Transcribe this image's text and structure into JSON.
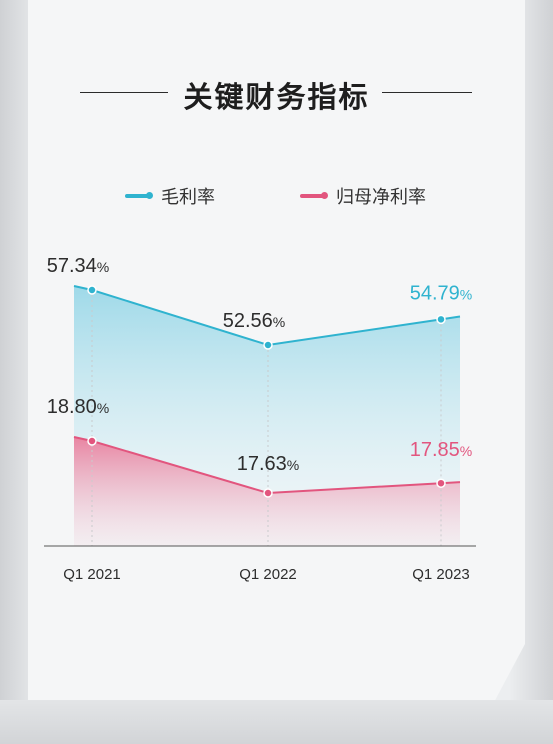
{
  "title": "关键财务指标",
  "legend": {
    "series1": "毛利率",
    "series2": "归母净利率"
  },
  "colors": {
    "series1": "#2fb3cf",
    "series2": "#e2557e",
    "label_default": "#2d2d2d"
  },
  "chart_data": {
    "type": "area",
    "title": "关键财务指标",
    "categories": [
      "Q1 2021",
      "Q1 2022",
      "Q1 2023"
    ],
    "series": [
      {
        "name": "毛利率",
        "values": [
          57.34,
          52.56,
          54.79
        ],
        "labels": [
          "57.34",
          "52.56",
          "54.79"
        ]
      },
      {
        "name": "归母净利率",
        "values": [
          18.8,
          17.63,
          17.85
        ],
        "labels": [
          "18.80",
          "17.63",
          "17.85"
        ]
      }
    ],
    "unit": "%",
    "legend_position": "top",
    "grid": false
  }
}
